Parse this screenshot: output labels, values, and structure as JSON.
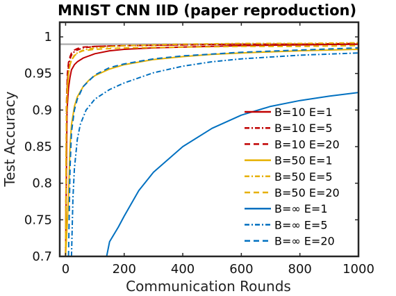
{
  "chart_data": {
    "type": "line",
    "title": "MNIST CNN IID (paper reproduction)",
    "xlabel": "Communication Rounds",
    "ylabel": "Test Accuracy",
    "xlim": [
      -20,
      1000
    ],
    "ylim": [
      0.7,
      1.02
    ],
    "xticks": [
      0,
      200,
      400,
      600,
      800,
      1000
    ],
    "xtick_labels": [
      "0",
      "200",
      "400",
      "600",
      "800",
      "1000"
    ],
    "yticks": [
      0.7,
      0.75,
      0.8,
      0.85,
      0.9,
      0.95,
      1.0
    ],
    "ytick_labels": [
      "0.7",
      "0.75",
      "0.8",
      "0.85",
      "0.9",
      "0.95",
      "1"
    ],
    "grid": false,
    "legend_position": "right",
    "reference_line": {
      "y": 0.99,
      "color": "#b3b3b3"
    },
    "series": [
      {
        "name": "B=10 E=1",
        "color": "#c00000",
        "style": "solid",
        "x": [
          0,
          5,
          10,
          15,
          20,
          30,
          40,
          60,
          80,
          100,
          150,
          200,
          300,
          400,
          600,
          800,
          1000
        ],
        "y": [
          0.7,
          0.9,
          0.93,
          0.945,
          0.955,
          0.962,
          0.966,
          0.971,
          0.974,
          0.977,
          0.981,
          0.983,
          0.985,
          0.986,
          0.988,
          0.989,
          0.99
        ]
      },
      {
        "name": "B=10 E=5",
        "color": "#c00000",
        "style": "dashdot",
        "x": [
          0,
          3,
          6,
          10,
          15,
          20,
          30,
          40,
          60,
          100,
          200,
          400,
          600,
          800,
          1000
        ],
        "y": [
          0.7,
          0.9,
          0.94,
          0.96,
          0.97,
          0.975,
          0.98,
          0.982,
          0.985,
          0.987,
          0.988,
          0.989,
          0.99,
          0.99,
          0.991
        ]
      },
      {
        "name": "B=10 E=20",
        "color": "#c00000",
        "style": "dashed",
        "x": [
          0,
          3,
          6,
          10,
          15,
          20,
          30,
          40,
          60,
          100,
          200,
          400,
          600,
          800,
          1000
        ],
        "y": [
          0.7,
          0.91,
          0.95,
          0.965,
          0.973,
          0.978,
          0.982,
          0.984,
          0.986,
          0.987,
          0.988,
          0.989,
          0.99,
          0.99,
          0.99
        ]
      },
      {
        "name": "B=50 E=1",
        "color": "#e6b000",
        "style": "solid",
        "x": [
          0,
          10,
          15,
          20,
          30,
          40,
          60,
          80,
          100,
          150,
          200,
          300,
          400,
          500,
          600,
          800,
          1000
        ],
        "y": [
          0.7,
          0.78,
          0.85,
          0.88,
          0.905,
          0.918,
          0.932,
          0.941,
          0.947,
          0.956,
          0.962,
          0.969,
          0.973,
          0.976,
          0.978,
          0.981,
          0.983
        ]
      },
      {
        "name": "B=50 E=5",
        "color": "#e6b000",
        "style": "dashdot",
        "x": [
          0,
          3,
          6,
          10,
          15,
          20,
          30,
          40,
          60,
          100,
          200,
          400,
          600,
          800,
          1000
        ],
        "y": [
          0.7,
          0.9,
          0.93,
          0.95,
          0.962,
          0.968,
          0.975,
          0.978,
          0.982,
          0.985,
          0.988,
          0.99,
          0.991,
          0.991,
          0.992
        ]
      },
      {
        "name": "B=50 E=20",
        "color": "#e6b000",
        "style": "dashed",
        "x": [
          0,
          3,
          6,
          10,
          15,
          20,
          30,
          40,
          60,
          100,
          200,
          400,
          600,
          800,
          1000
        ],
        "y": [
          0.7,
          0.9,
          0.93,
          0.95,
          0.962,
          0.968,
          0.974,
          0.978,
          0.981,
          0.983,
          0.985,
          0.986,
          0.987,
          0.987,
          0.988
        ]
      },
      {
        "name": "B=∞ E=1",
        "color": "#0070c0",
        "style": "solid",
        "x": [
          140,
          150,
          165,
          180,
          200,
          250,
          300,
          400,
          500,
          600,
          700,
          800,
          900,
          1000
        ],
        "y": [
          0.7,
          0.72,
          0.73,
          0.74,
          0.755,
          0.79,
          0.815,
          0.85,
          0.875,
          0.893,
          0.905,
          0.913,
          0.919,
          0.924
        ]
      },
      {
        "name": "B=∞ E=5",
        "color": "#0070c0",
        "style": "dashdot",
        "x": [
          20,
          25,
          30,
          40,
          50,
          70,
          100,
          150,
          200,
          300,
          400,
          500,
          600,
          800,
          1000
        ],
        "y": [
          0.7,
          0.78,
          0.82,
          0.86,
          0.88,
          0.9,
          0.915,
          0.928,
          0.937,
          0.951,
          0.96,
          0.966,
          0.97,
          0.975,
          0.978
        ]
      },
      {
        "name": "B=∞ E=20",
        "color": "#0070c0",
        "style": "dashed",
        "x": [
          10,
          15,
          20,
          30,
          40,
          60,
          100,
          150,
          200,
          300,
          400,
          600,
          800,
          1000
        ],
        "y": [
          0.7,
          0.82,
          0.87,
          0.9,
          0.915,
          0.932,
          0.948,
          0.958,
          0.963,
          0.97,
          0.974,
          0.979,
          0.982,
          0.985
        ]
      }
    ]
  }
}
